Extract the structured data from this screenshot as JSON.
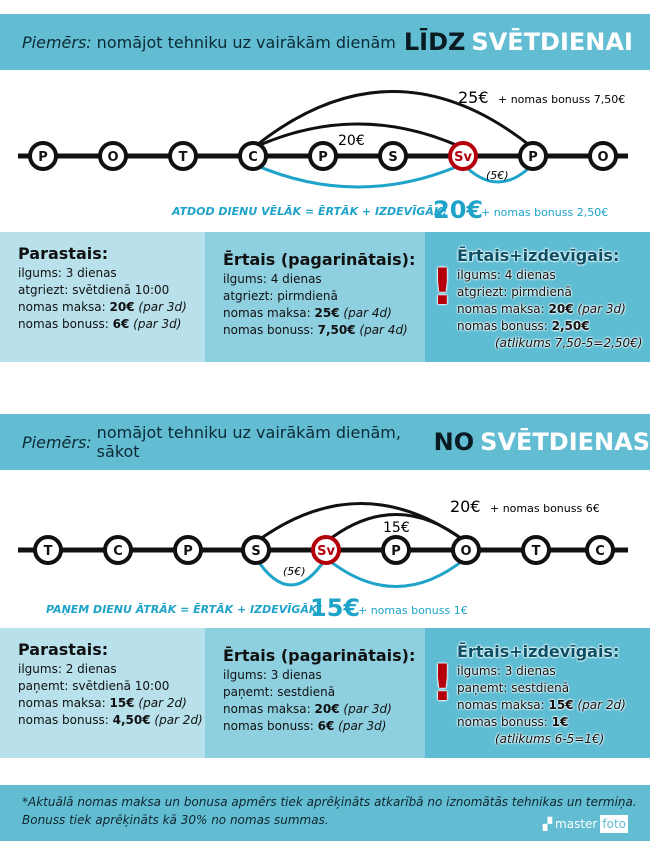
{
  "colors": {
    "accent": "#1ea3c9",
    "highlight": "#b5000b",
    "header_bg": "#62bdd3"
  },
  "section1": {
    "header": {
      "lead": "Piemērs:",
      "text": "nomājot tehniku uz vairākām dienām",
      "strong": "LĪDZ",
      "strong2": "SVĒTDIENAI"
    },
    "days": [
      "P",
      "O",
      "T",
      "C",
      "P",
      "S",
      "Sv",
      "P",
      "O"
    ],
    "highlight_day": "Sv",
    "labels": {
      "long_arc": "25€",
      "long_arc_bonus": "+ nomas bonuss 7,50€",
      "short_arc": "20€",
      "small": "(5€)",
      "slogan": "ATDOD DIENU VĒLĀK = ĒRTĀK + IZDEVĪGĀK!",
      "price": "20€",
      "bonus": "+ nomas bonuss 2,50€"
    },
    "boxes": [
      {
        "title": "Parastais:",
        "lines": [
          "ilgums: 3 dienas",
          "atgriezt: svētdienā 10:00"
        ],
        "fee_label": "nomas maksa:",
        "fee": "20€",
        "fee_note": "(par 3d)",
        "bonus_label": "nomas bonuss:",
        "bonus": "6€",
        "bonus_note": "(par 3d)"
      },
      {
        "title": "Ērtais (pagarinātais):",
        "lines": [
          "ilgums: 4 dienas",
          "atgriezt: pirmdienā"
        ],
        "fee_label": "nomas maksa:",
        "fee": "25€",
        "fee_note": "(par 4d)",
        "bonus_label": "nomas bonuss:",
        "bonus": "7,50€",
        "bonus_note": "(par 4d)"
      },
      {
        "title": "Ērtais+izdevīgais:",
        "lines": [
          "ilgums: 4 dienas",
          "atgriezt: pirmdienā"
        ],
        "fee_label": "nomas maksa:",
        "fee": "20€",
        "fee_note": "(par 3d)",
        "bonus_label": "nomas bonuss:",
        "bonus": "2,50€",
        "bonus_note": "",
        "remainder": "(atlikums 7,50-5=2,50€)"
      }
    ]
  },
  "section2": {
    "header": {
      "lead": "Piemērs:",
      "text": "nomājot tehniku uz vairākām dienām, sākot",
      "strong": "NO",
      "strong2": "SVĒTDIENAS"
    },
    "days": [
      "T",
      "C",
      "P",
      "S",
      "Sv",
      "P",
      "O",
      "T",
      "C"
    ],
    "highlight_day": "Sv",
    "labels": {
      "long_arc": "20€",
      "long_arc_bonus": "+ nomas bonuss 6€",
      "short_arc": "15€",
      "small": "(5€)",
      "slogan": "PAŅEM DIENU ĀTRĀK = ĒRTĀK + IZDEVĪGĀK!",
      "price": "15€",
      "bonus": "+ nomas bonuss 1€"
    },
    "boxes": [
      {
        "title": "Parastais:",
        "lines": [
          "ilgums: 2 dienas",
          "paņemt: svētdienā 10:00"
        ],
        "fee_label": "nomas maksa:",
        "fee": "15€",
        "fee_note": "(par 2d)",
        "bonus_label": "nomas bonuss:",
        "bonus": "4,50€",
        "bonus_note": "(par 2d)"
      },
      {
        "title": "Ērtais (pagarinātais):",
        "lines": [
          "ilgums: 3 dienas",
          "paņemt: sestdienā"
        ],
        "fee_label": "nomas maksa:",
        "fee": "20€",
        "fee_note": "(par 3d)",
        "bonus_label": "nomas bonuss:",
        "bonus": "6€",
        "bonus_note": "(par 3d)"
      },
      {
        "title": "Ērtais+izdevīgais:",
        "lines": [
          "ilgums: 3 dienas",
          "paņemt: sestdienā"
        ],
        "fee_label": "nomas maksa:",
        "fee": "15€",
        "fee_note": "(par 2d)",
        "bonus_label": "nomas bonuss:",
        "bonus": "1€",
        "bonus_note": "",
        "remainder": "(atlikums 6-5=1€)"
      }
    ]
  },
  "footer": {
    "line1": "*Aktuālā nomas maksa un bonusa apmērs tiek aprēķināts atkarībā no iznomātās tehnikas un termiņa.",
    "line2": "Bonuss tiek aprēķināts kā 30% no nomas summas.",
    "logo_a": "master",
    "logo_b": "foto"
  }
}
